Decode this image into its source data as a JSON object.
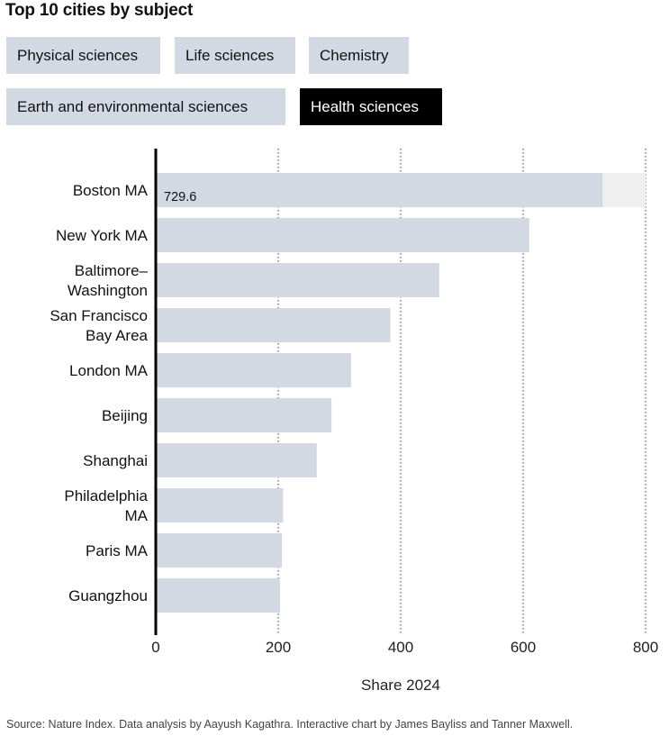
{
  "title": "Top 10 cities by subject",
  "tabs": [
    {
      "label": "Physical sciences",
      "active": false
    },
    {
      "label": "Life sciences",
      "active": false
    },
    {
      "label": "Chemistry",
      "active": false
    },
    {
      "label": "Earth and environmental sciences",
      "active": false
    },
    {
      "label": "Health sciences",
      "active": true
    }
  ],
  "colors": {
    "bar": "#d3d9e3",
    "bar_highlight_bg": "#efefef",
    "active_tab_bg": "#000000",
    "inactive_tab_bg": "#d3d9e3"
  },
  "chart_data": {
    "type": "bar",
    "orientation": "horizontal",
    "categories": [
      [
        "Boston MA"
      ],
      [
        "New York MA"
      ],
      [
        "Baltimore–",
        "Washington"
      ],
      [
        "San Francisco",
        "Bay Area"
      ],
      [
        "London MA"
      ],
      [
        "Beijing"
      ],
      [
        "Shanghai"
      ],
      [
        "Philadelphia",
        "MA"
      ],
      [
        "Paris MA"
      ],
      [
        "Guangzhou"
      ]
    ],
    "values": [
      729.6,
      610,
      463,
      383,
      319,
      287,
      263,
      208,
      206,
      203
    ],
    "data_labels": [
      "729.6",
      "",
      "",
      "",
      "",
      "",
      "",
      "",
      "",
      ""
    ],
    "xlabel": "Share 2024",
    "xlim": [
      0,
      800
    ],
    "xticks": [
      0,
      200,
      400,
      600,
      800
    ],
    "grid": "vertical dotted"
  },
  "source": "Source: Nature Index. Data analysis by Aayush Kagathra. Interactive chart by James Bayliss and Tanner Maxwell."
}
